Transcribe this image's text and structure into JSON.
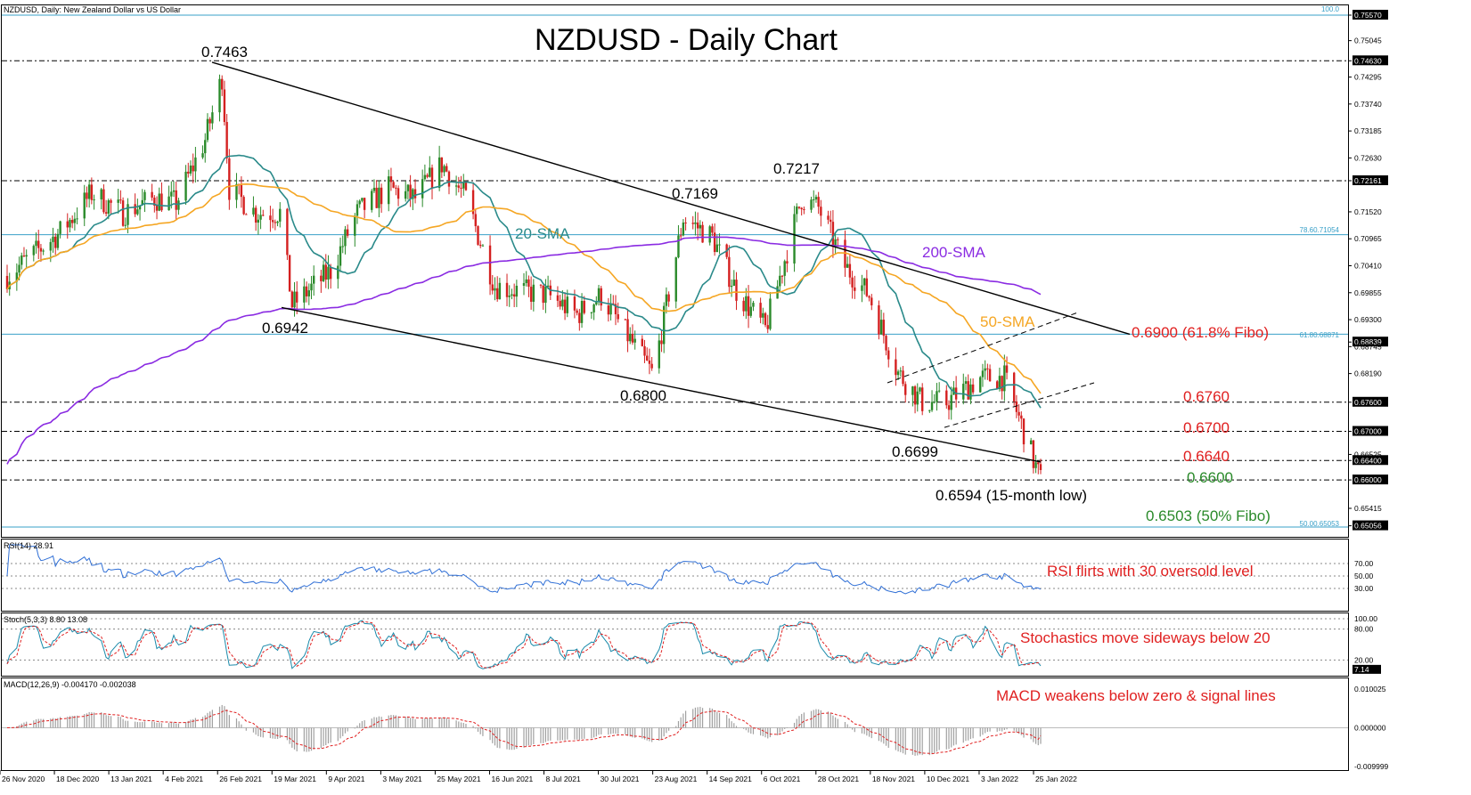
{
  "header": {
    "symbol_info": "NZDUSD, Daily:  New Zealand Dollar vs US Dollar",
    "title": "NZDUSD - Daily Chart",
    "fibo_top_label": "100.0"
  },
  "price_axis_ticks": [
    "0.75570",
    "0.75045",
    "0.74630",
    "0.74295",
    "0.73740",
    "0.73185",
    "0.72630",
    "0.72161",
    "0.71520",
    "0.70965",
    "0.70410",
    "0.69855",
    "0.69300",
    "0.68839",
    "0.68745",
    "0.68190",
    "0.67600",
    "0.67000",
    "0.66525",
    "0.66400",
    "0.66000",
    "0.65415",
    "0.65056"
  ],
  "highlighted_price_tags": [
    "0.75570",
    "0.74630",
    "0.72161",
    "0.68839",
    "0.67600",
    "0.67000",
    "0.66400",
    "0.66000",
    "0.65056"
  ],
  "fibo_labels": [
    "78.60.71054",
    "61.80.68871",
    "50.00.65053"
  ],
  "annotations": {
    "high_7463": "0.7463",
    "low_6942": "0.6942",
    "high_7169": "0.7169",
    "high_7217": "0.7217",
    "low_6800": "0.6800",
    "low_6699": "0.6699",
    "low_6594": "0.6594 (15-month low)",
    "sma20": "20-SMA",
    "sma50": "50-SMA",
    "sma200": "200-SMA",
    "level_6900": "0.6900 (61.8% Fibo)",
    "level_6760": "0.6760",
    "level_6700": "0.6700",
    "level_6640": "0.6640",
    "level_6600": "0.6600",
    "level_6503": "0.6503 (50% Fibo)"
  },
  "rsi": {
    "label": "RSI(14) 28.91",
    "ticks": [
      "70.00",
      "50.00",
      "30.00"
    ],
    "note": "RSI flirts with 30 oversold level"
  },
  "stoch": {
    "label": "Stoch(5,3,3) 8.80 13.08",
    "ticks": [
      "100.00",
      "80.00",
      "20.00",
      "7.14"
    ],
    "note": "Stochastics move sideways below 20"
  },
  "macd": {
    "label": "MACD(12,26,9) -0.004170 -0.002038",
    "ticks": [
      "0.010025",
      "0.000000",
      "-0.009999"
    ],
    "note": "MACD weakens below zero & signal lines"
  },
  "x_axis_labels": [
    "26 Nov 2020",
    "18 Dec 2020",
    "13 Jan 2021",
    "4 Feb 2021",
    "26 Feb 2021",
    "19 Mar 2021",
    "9 Apr 2021",
    "3 May 2021",
    "25 May 2021",
    "16 Jun 2021",
    "8 Jul 2021",
    "30 Jul 2021",
    "23 Aug 2021",
    "14 Sep 2021",
    "6 Oct 2021",
    "28 Oct 2021",
    "18 Nov 2021",
    "10 Dec 2021",
    "3 Jan 2022",
    "25 Jan 2022"
  ],
  "colors": {
    "bull": "#2a8a2a",
    "bear": "#d42020",
    "sma20": "#2a8a8a",
    "sma50": "#f5a623",
    "sma200": "#8a2be2",
    "fibo": "#39a0c8",
    "rsi_line": "#2f6fd6",
    "stoch_main": "#1a8aaa",
    "stoch_signal": "#e02020",
    "macd_signal": "#e02020",
    "macd_hist": "#a0a0a0"
  },
  "chart_data": {
    "type": "candlestick",
    "title": "NZDUSD - Daily Chart",
    "symbol": "NZDUSD",
    "timeframe": "Daily",
    "x_start": "26 Nov 2020",
    "x_end": "25 Jan 2022",
    "ylim": [
      0.65,
      0.756
    ],
    "swing_points": [
      {
        "date": "23 Feb 2021",
        "price": 0.7463,
        "type": "high"
      },
      {
        "date": "24 Mar 2021",
        "price": 0.6942,
        "type": "low"
      },
      {
        "date": "20 Aug 2021",
        "price": 0.68,
        "type": "low"
      },
      {
        "date": "2 Sep 2021",
        "price": 0.7169,
        "type": "high"
      },
      {
        "date": "21 Oct 2021",
        "price": 0.7217,
        "type": "high"
      },
      {
        "date": "20 Dec 2021",
        "price": 0.6699,
        "type": "low"
      },
      {
        "date": "28 Jan 2022",
        "price": 0.6594,
        "type": "low"
      }
    ],
    "levels": [
      {
        "price": 0.7557,
        "label": "100.0"
      },
      {
        "price": 0.7463,
        "label": ""
      },
      {
        "price": 0.7216,
        "label": ""
      },
      {
        "price": 0.7105,
        "label": "78.6"
      },
      {
        "price": 0.69,
        "label": "0.6900 (61.8% Fibo)"
      },
      {
        "price": 0.676,
        "label": "0.6760"
      },
      {
        "price": 0.67,
        "label": "0.6700"
      },
      {
        "price": 0.664,
        "label": "0.6640"
      },
      {
        "price": 0.66,
        "label": "0.6600"
      },
      {
        "price": 0.6503,
        "label": "0.6503 (50% Fibo)"
      }
    ],
    "close_series": [
      {
        "date": "26 Nov 2020",
        "close": 0.702
      },
      {
        "date": "18 Dec 2020",
        "close": 0.711
      },
      {
        "date": "31 Dec 2020",
        "close": 0.719
      },
      {
        "date": "13 Jan 2021",
        "close": 0.715
      },
      {
        "date": "26 Jan 2021",
        "close": 0.718
      },
      {
        "date": "4 Feb 2021",
        "close": 0.717
      },
      {
        "date": "16 Feb 2021",
        "close": 0.73
      },
      {
        "date": "23 Feb 2021",
        "close": 0.743
      },
      {
        "date": "26 Feb 2021",
        "close": 0.72
      },
      {
        "date": "9 Mar 2021",
        "close": 0.715
      },
      {
        "date": "19 Mar 2021",
        "close": 0.715
      },
      {
        "date": "24 Mar 2021",
        "close": 0.696
      },
      {
        "date": "9 Apr 2021",
        "close": 0.703
      },
      {
        "date": "20 Apr 2021",
        "close": 0.715
      },
      {
        "date": "3 May 2021",
        "close": 0.72
      },
      {
        "date": "14 May 2021",
        "close": 0.718
      },
      {
        "date": "25 May 2021",
        "close": 0.725
      },
      {
        "date": "4 Jun 2021",
        "close": 0.718
      },
      {
        "date": "16 Jun 2021",
        "close": 0.7
      },
      {
        "date": "25 Jun 2021",
        "close": 0.699
      },
      {
        "date": "8 Jul 2021",
        "close": 0.698
      },
      {
        "date": "20 Jul 2021",
        "close": 0.694
      },
      {
        "date": "30 Jul 2021",
        "close": 0.698
      },
      {
        "date": "20 Aug 2021",
        "close": 0.682
      },
      {
        "date": "23 Aug 2021",
        "close": 0.688
      },
      {
        "date": "2 Sep 2021",
        "close": 0.714
      },
      {
        "date": "14 Sep 2021",
        "close": 0.71
      },
      {
        "date": "24 Sep 2021",
        "close": 0.699
      },
      {
        "date": "6 Oct 2021",
        "close": 0.691
      },
      {
        "date": "21 Oct 2021",
        "close": 0.718
      },
      {
        "date": "28 Oct 2021",
        "close": 0.716
      },
      {
        "date": "8 Nov 2021",
        "close": 0.704
      },
      {
        "date": "18 Nov 2021",
        "close": 0.698
      },
      {
        "date": "30 Nov 2021",
        "close": 0.682
      },
      {
        "date": "10 Dec 2021",
        "close": 0.676
      },
      {
        "date": "20 Dec 2021",
        "close": 0.676
      },
      {
        "date": "3 Jan 2022",
        "close": 0.681
      },
      {
        "date": "13 Jan 2022",
        "close": 0.681
      },
      {
        "date": "21 Jan 2022",
        "close": 0.67
      },
      {
        "date": "25 Jan 2022",
        "close": 0.664
      },
      {
        "date": "28 Jan 2022",
        "close": 0.66
      }
    ],
    "indicators": {
      "rsi_14": 28.91,
      "stoch_5_3_3": [
        8.8,
        13.08
      ],
      "macd_12_26_9": [
        -0.00417,
        -0.002038
      ]
    }
  }
}
